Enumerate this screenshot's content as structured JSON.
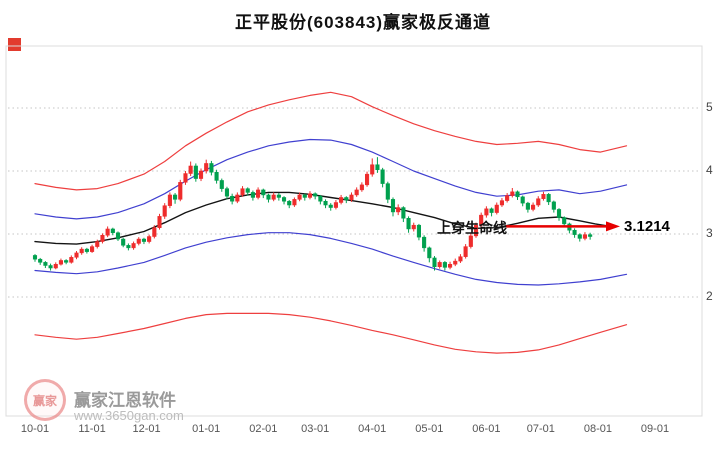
{
  "header": {
    "title": "正平股份(603843)赢家极反通道"
  },
  "annotation": {
    "text": "上穿生命线",
    "price_label": "3.1214",
    "arrow_color": "#e60000"
  },
  "watermark": {
    "logo_text": "赢家",
    "brand": "赢家江恩软件",
    "url": "www.3650gan.com"
  },
  "chart_data": {
    "type": "candlestick",
    "title": "正平股份(603843)赢家极反通道",
    "ylabel": "",
    "xlabel": "",
    "ylim": [
      1.0,
      5.6
    ],
    "y_ticks": [
      5,
      4,
      3,
      2
    ],
    "grid": "dotted-horizontal",
    "x_tick_labels": [
      "10-01",
      "11-01",
      "12-01",
      "01-01",
      "02-01",
      "03-01",
      "04-01",
      "05-01",
      "06-01",
      "07-01",
      "08-01",
      "09-01"
    ],
    "x_tick_days": [
      0,
      22,
      43,
      66,
      88,
      108,
      130,
      152,
      174,
      195,
      217,
      239
    ],
    "day_step": 2,
    "lifeline_value": 3.1214,
    "colors": {
      "up": "#ee2c2c",
      "down": "#00a04e"
    },
    "candles": [
      [
        2.66,
        2.68,
        2.56,
        2.6
      ],
      [
        2.6,
        2.62,
        2.51,
        2.55
      ],
      [
        2.55,
        2.57,
        2.46,
        2.5
      ],
      [
        2.5,
        2.53,
        2.42,
        2.46
      ],
      [
        2.46,
        2.55,
        2.44,
        2.52
      ],
      [
        2.52,
        2.61,
        2.5,
        2.58
      ],
      [
        2.58,
        2.6,
        2.52,
        2.55
      ],
      [
        2.55,
        2.66,
        2.53,
        2.63
      ],
      [
        2.63,
        2.73,
        2.6,
        2.7
      ],
      [
        2.7,
        2.79,
        2.67,
        2.76
      ],
      [
        2.76,
        2.78,
        2.69,
        2.72
      ],
      [
        2.72,
        2.83,
        2.7,
        2.8
      ],
      [
        2.8,
        2.91,
        2.77,
        2.88
      ],
      [
        2.88,
        3.01,
        2.85,
        2.98
      ],
      [
        2.98,
        3.12,
        2.95,
        3.08
      ],
      [
        3.08,
        3.1,
        2.98,
        3.02
      ],
      [
        3.02,
        3.04,
        2.89,
        2.92
      ],
      [
        2.92,
        2.94,
        2.79,
        2.82
      ],
      [
        2.82,
        2.85,
        2.74,
        2.78
      ],
      [
        2.78,
        2.88,
        2.75,
        2.85
      ],
      [
        2.85,
        2.95,
        2.82,
        2.92
      ],
      [
        2.92,
        2.94,
        2.84,
        2.88
      ],
      [
        2.88,
        2.99,
        2.85,
        2.96
      ],
      [
        2.96,
        3.14,
        2.93,
        3.1
      ],
      [
        3.1,
        3.32,
        3.07,
        3.28
      ],
      [
        3.28,
        3.49,
        3.24,
        3.45
      ],
      [
        3.45,
        3.66,
        3.41,
        3.62
      ],
      [
        3.62,
        3.65,
        3.48,
        3.55
      ],
      [
        3.55,
        3.86,
        3.52,
        3.82
      ],
      [
        3.82,
        4.0,
        3.78,
        3.96
      ],
      [
        3.96,
        4.15,
        3.92,
        4.08
      ],
      [
        4.08,
        4.12,
        3.83,
        3.88
      ],
      [
        3.88,
        4.04,
        3.84,
        4.0
      ],
      [
        4.0,
        4.18,
        3.96,
        4.12
      ],
      [
        4.12,
        4.16,
        3.93,
        3.98
      ],
      [
        3.98,
        4.02,
        3.8,
        3.85
      ],
      [
        3.85,
        3.88,
        3.67,
        3.72
      ],
      [
        3.72,
        3.75,
        3.55,
        3.6
      ],
      [
        3.6,
        3.64,
        3.47,
        3.52
      ],
      [
        3.52,
        3.66,
        3.49,
        3.62
      ],
      [
        3.62,
        3.76,
        3.59,
        3.72
      ],
      [
        3.72,
        3.74,
        3.61,
        3.66
      ],
      [
        3.66,
        3.69,
        3.53,
        3.58
      ],
      [
        3.58,
        3.74,
        3.55,
        3.7
      ],
      [
        3.7,
        3.72,
        3.57,
        3.62
      ],
      [
        3.62,
        3.64,
        3.5,
        3.55
      ],
      [
        3.55,
        3.66,
        3.52,
        3.62
      ],
      [
        3.62,
        3.65,
        3.53,
        3.58
      ],
      [
        3.58,
        3.6,
        3.47,
        3.52
      ],
      [
        3.52,
        3.54,
        3.41,
        3.46
      ],
      [
        3.46,
        3.58,
        3.43,
        3.55
      ],
      [
        3.55,
        3.66,
        3.52,
        3.62
      ],
      [
        3.62,
        3.64,
        3.53,
        3.58
      ],
      [
        3.58,
        3.68,
        3.55,
        3.64
      ],
      [
        3.64,
        3.66,
        3.55,
        3.6
      ],
      [
        3.6,
        3.62,
        3.47,
        3.52
      ],
      [
        3.52,
        3.55,
        3.41,
        3.46
      ],
      [
        3.46,
        3.49,
        3.37,
        3.42
      ],
      [
        3.42,
        3.54,
        3.39,
        3.5
      ],
      [
        3.5,
        3.62,
        3.47,
        3.58
      ],
      [
        3.58,
        3.6,
        3.49,
        3.54
      ],
      [
        3.54,
        3.66,
        3.51,
        3.62
      ],
      [
        3.62,
        3.74,
        3.59,
        3.7
      ],
      [
        3.7,
        3.82,
        3.67,
        3.78
      ],
      [
        3.78,
        3.99,
        3.75,
        3.95
      ],
      [
        3.95,
        4.2,
        3.91,
        4.1
      ],
      [
        4.1,
        4.22,
        3.97,
        4.02
      ],
      [
        4.02,
        4.05,
        3.74,
        3.8
      ],
      [
        3.8,
        3.83,
        3.49,
        3.55
      ],
      [
        3.55,
        3.58,
        3.28,
        3.35
      ],
      [
        3.35,
        3.47,
        3.3,
        3.42
      ],
      [
        3.42,
        3.44,
        3.19,
        3.25
      ],
      [
        3.25,
        3.28,
        3.02,
        3.08
      ],
      [
        3.08,
        3.18,
        3.04,
        3.14
      ],
      [
        3.14,
        3.16,
        2.9,
        2.95
      ],
      [
        2.95,
        2.98,
        2.72,
        2.78
      ],
      [
        2.78,
        2.8,
        2.55,
        2.62
      ],
      [
        2.62,
        2.65,
        2.42,
        2.48
      ],
      [
        2.48,
        2.58,
        2.45,
        2.55
      ],
      [
        2.55,
        2.57,
        2.42,
        2.47
      ],
      [
        2.47,
        2.56,
        2.44,
        2.52
      ],
      [
        2.52,
        2.61,
        2.49,
        2.57
      ],
      [
        2.57,
        2.68,
        2.54,
        2.64
      ],
      [
        2.64,
        2.84,
        2.61,
        2.8
      ],
      [
        2.8,
        3.01,
        2.77,
        2.97
      ],
      [
        2.97,
        3.18,
        2.94,
        3.14
      ],
      [
        3.14,
        3.34,
        3.1,
        3.3
      ],
      [
        3.3,
        3.44,
        3.26,
        3.4
      ],
      [
        3.4,
        3.42,
        3.28,
        3.34
      ],
      [
        3.34,
        3.5,
        3.31,
        3.46
      ],
      [
        3.46,
        3.57,
        3.43,
        3.53
      ],
      [
        3.53,
        3.65,
        3.5,
        3.61
      ],
      [
        3.61,
        3.73,
        3.58,
        3.67
      ],
      [
        3.67,
        3.69,
        3.54,
        3.59
      ],
      [
        3.59,
        3.61,
        3.44,
        3.49
      ],
      [
        3.49,
        3.51,
        3.34,
        3.39
      ],
      [
        3.39,
        3.5,
        3.36,
        3.46
      ],
      [
        3.46,
        3.6,
        3.43,
        3.56
      ],
      [
        3.56,
        3.67,
        3.53,
        3.63
      ],
      [
        3.63,
        3.65,
        3.46,
        3.51
      ],
      [
        3.51,
        3.53,
        3.34,
        3.39
      ],
      [
        3.39,
        3.41,
        3.21,
        3.26
      ],
      [
        3.26,
        3.28,
        3.11,
        3.16
      ],
      [
        3.16,
        3.18,
        3.01,
        3.06
      ],
      [
        3.06,
        3.09,
        2.94,
        2.99
      ],
      [
        2.99,
        3.01,
        2.88,
        2.93
      ],
      [
        2.93,
        3.03,
        2.9,
        2.99
      ],
      [
        2.99,
        3.02,
        2.91,
        2.96
      ]
    ],
    "bands": {
      "upper_red": {
        "color": "#ee3f3f",
        "width": 1.2,
        "points": [
          [
            0,
            3.8
          ],
          [
            8,
            3.74
          ],
          [
            16,
            3.7
          ],
          [
            24,
            3.72
          ],
          [
            32,
            3.8
          ],
          [
            42,
            3.95
          ],
          [
            50,
            4.15
          ],
          [
            58,
            4.4
          ],
          [
            66,
            4.6
          ],
          [
            74,
            4.78
          ],
          [
            82,
            4.94
          ],
          [
            90,
            5.05
          ],
          [
            98,
            5.13
          ],
          [
            106,
            5.2
          ],
          [
            114,
            5.25
          ],
          [
            122,
            5.18
          ],
          [
            130,
            5.02
          ],
          [
            138,
            4.88
          ],
          [
            146,
            4.75
          ],
          [
            154,
            4.64
          ],
          [
            162,
            4.55
          ],
          [
            170,
            4.47
          ],
          [
            178,
            4.42
          ],
          [
            186,
            4.44
          ],
          [
            194,
            4.47
          ],
          [
            202,
            4.42
          ],
          [
            210,
            4.34
          ],
          [
            218,
            4.3
          ],
          [
            228,
            4.4
          ]
        ]
      },
      "upper_blue": {
        "color": "#4040d0",
        "width": 1.2,
        "points": [
          [
            0,
            3.32
          ],
          [
            8,
            3.27
          ],
          [
            16,
            3.24
          ],
          [
            24,
            3.27
          ],
          [
            32,
            3.34
          ],
          [
            42,
            3.48
          ],
          [
            50,
            3.64
          ],
          [
            58,
            3.84
          ],
          [
            66,
            4.02
          ],
          [
            74,
            4.18
          ],
          [
            82,
            4.3
          ],
          [
            90,
            4.4
          ],
          [
            98,
            4.46
          ],
          [
            106,
            4.5
          ],
          [
            114,
            4.49
          ],
          [
            122,
            4.42
          ],
          [
            130,
            4.3
          ],
          [
            138,
            4.15
          ],
          [
            146,
            4.0
          ],
          [
            154,
            3.88
          ],
          [
            162,
            3.76
          ],
          [
            170,
            3.66
          ],
          [
            178,
            3.6
          ],
          [
            186,
            3.62
          ],
          [
            194,
            3.68
          ],
          [
            202,
            3.7
          ],
          [
            210,
            3.64
          ],
          [
            218,
            3.68
          ],
          [
            228,
            3.78
          ]
        ]
      },
      "black": {
        "color": "#141414",
        "width": 1.4,
        "points": [
          [
            0,
            2.88
          ],
          [
            8,
            2.85
          ],
          [
            16,
            2.84
          ],
          [
            24,
            2.88
          ],
          [
            32,
            2.94
          ],
          [
            42,
            3.04
          ],
          [
            50,
            3.18
          ],
          [
            58,
            3.34
          ],
          [
            66,
            3.46
          ],
          [
            74,
            3.56
          ],
          [
            82,
            3.62
          ],
          [
            90,
            3.66
          ],
          [
            98,
            3.66
          ],
          [
            106,
            3.63
          ],
          [
            114,
            3.58
          ],
          [
            122,
            3.53
          ],
          [
            130,
            3.48
          ],
          [
            138,
            3.42
          ],
          [
            146,
            3.34
          ],
          [
            154,
            3.26
          ],
          [
            162,
            3.16
          ],
          [
            170,
            3.09
          ],
          [
            178,
            3.1
          ],
          [
            186,
            3.17
          ],
          [
            194,
            3.25
          ],
          [
            202,
            3.27
          ],
          [
            210,
            3.21
          ],
          [
            216,
            3.16
          ],
          [
            222,
            3.12
          ]
        ]
      },
      "lower_blue": {
        "color": "#4040d0",
        "width": 1.2,
        "points": [
          [
            0,
            2.42
          ],
          [
            8,
            2.39
          ],
          [
            16,
            2.37
          ],
          [
            24,
            2.4
          ],
          [
            32,
            2.46
          ],
          [
            42,
            2.55
          ],
          [
            50,
            2.66
          ],
          [
            58,
            2.78
          ],
          [
            66,
            2.87
          ],
          [
            74,
            2.94
          ],
          [
            82,
            2.99
          ],
          [
            90,
            3.02
          ],
          [
            98,
            3.02
          ],
          [
            106,
            2.99
          ],
          [
            114,
            2.93
          ],
          [
            122,
            2.85
          ],
          [
            130,
            2.76
          ],
          [
            138,
            2.65
          ],
          [
            146,
            2.55
          ],
          [
            154,
            2.45
          ],
          [
            162,
            2.36
          ],
          [
            170,
            2.28
          ],
          [
            178,
            2.23
          ],
          [
            186,
            2.2
          ],
          [
            194,
            2.19
          ],
          [
            202,
            2.21
          ],
          [
            210,
            2.24
          ],
          [
            218,
            2.28
          ],
          [
            228,
            2.36
          ]
        ]
      },
      "lower_red": {
        "color": "#ee3f3f",
        "width": 1.2,
        "points": [
          [
            0,
            1.4
          ],
          [
            8,
            1.36
          ],
          [
            16,
            1.33
          ],
          [
            24,
            1.36
          ],
          [
            32,
            1.42
          ],
          [
            42,
            1.5
          ],
          [
            50,
            1.58
          ],
          [
            58,
            1.66
          ],
          [
            66,
            1.72
          ],
          [
            74,
            1.74
          ],
          [
            82,
            1.74
          ],
          [
            90,
            1.74
          ],
          [
            98,
            1.72
          ],
          [
            106,
            1.68
          ],
          [
            114,
            1.62
          ],
          [
            122,
            1.55
          ],
          [
            130,
            1.47
          ],
          [
            138,
            1.4
          ],
          [
            146,
            1.32
          ],
          [
            154,
            1.24
          ],
          [
            162,
            1.17
          ],
          [
            170,
            1.13
          ],
          [
            178,
            1.11
          ],
          [
            186,
            1.12
          ],
          [
            194,
            1.16
          ],
          [
            202,
            1.24
          ],
          [
            210,
            1.34
          ],
          [
            218,
            1.44
          ],
          [
            228,
            1.56
          ]
        ]
      }
    }
  }
}
